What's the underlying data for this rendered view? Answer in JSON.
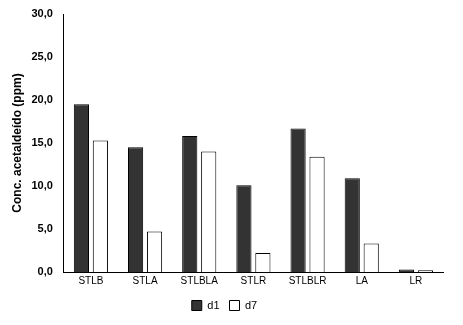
{
  "chart_data": {
    "type": "bar",
    "y_label": "Conc. acetaldeído (ppm)",
    "categories": [
      "STLB",
      "STLA",
      "STLBLA",
      "STLR",
      "STLBLR",
      "LA",
      "LR"
    ],
    "series": [
      {
        "name": "d1",
        "color": "#333333",
        "values": [
          19.5,
          14.5,
          15.8,
          10.1,
          16.7,
          10.9,
          0.3
        ]
      },
      {
        "name": "d7",
        "color": "#ffffff",
        "values": [
          15.3,
          4.7,
          14.0,
          2.2,
          13.4,
          3.3,
          0.2
        ]
      }
    ],
    "ylim": [
      0,
      30
    ],
    "yticks": [
      {
        "value": 0,
        "label": "0,0"
      },
      {
        "value": 5,
        "label": "5,0"
      },
      {
        "value": 10,
        "label": "10,0"
      },
      {
        "value": 15,
        "label": "15,0"
      },
      {
        "value": 20,
        "label": "20,0"
      },
      {
        "value": 25,
        "label": "25,0"
      },
      {
        "value": 30,
        "label": "30,0"
      }
    ],
    "grid": false,
    "legend": "bottom"
  }
}
